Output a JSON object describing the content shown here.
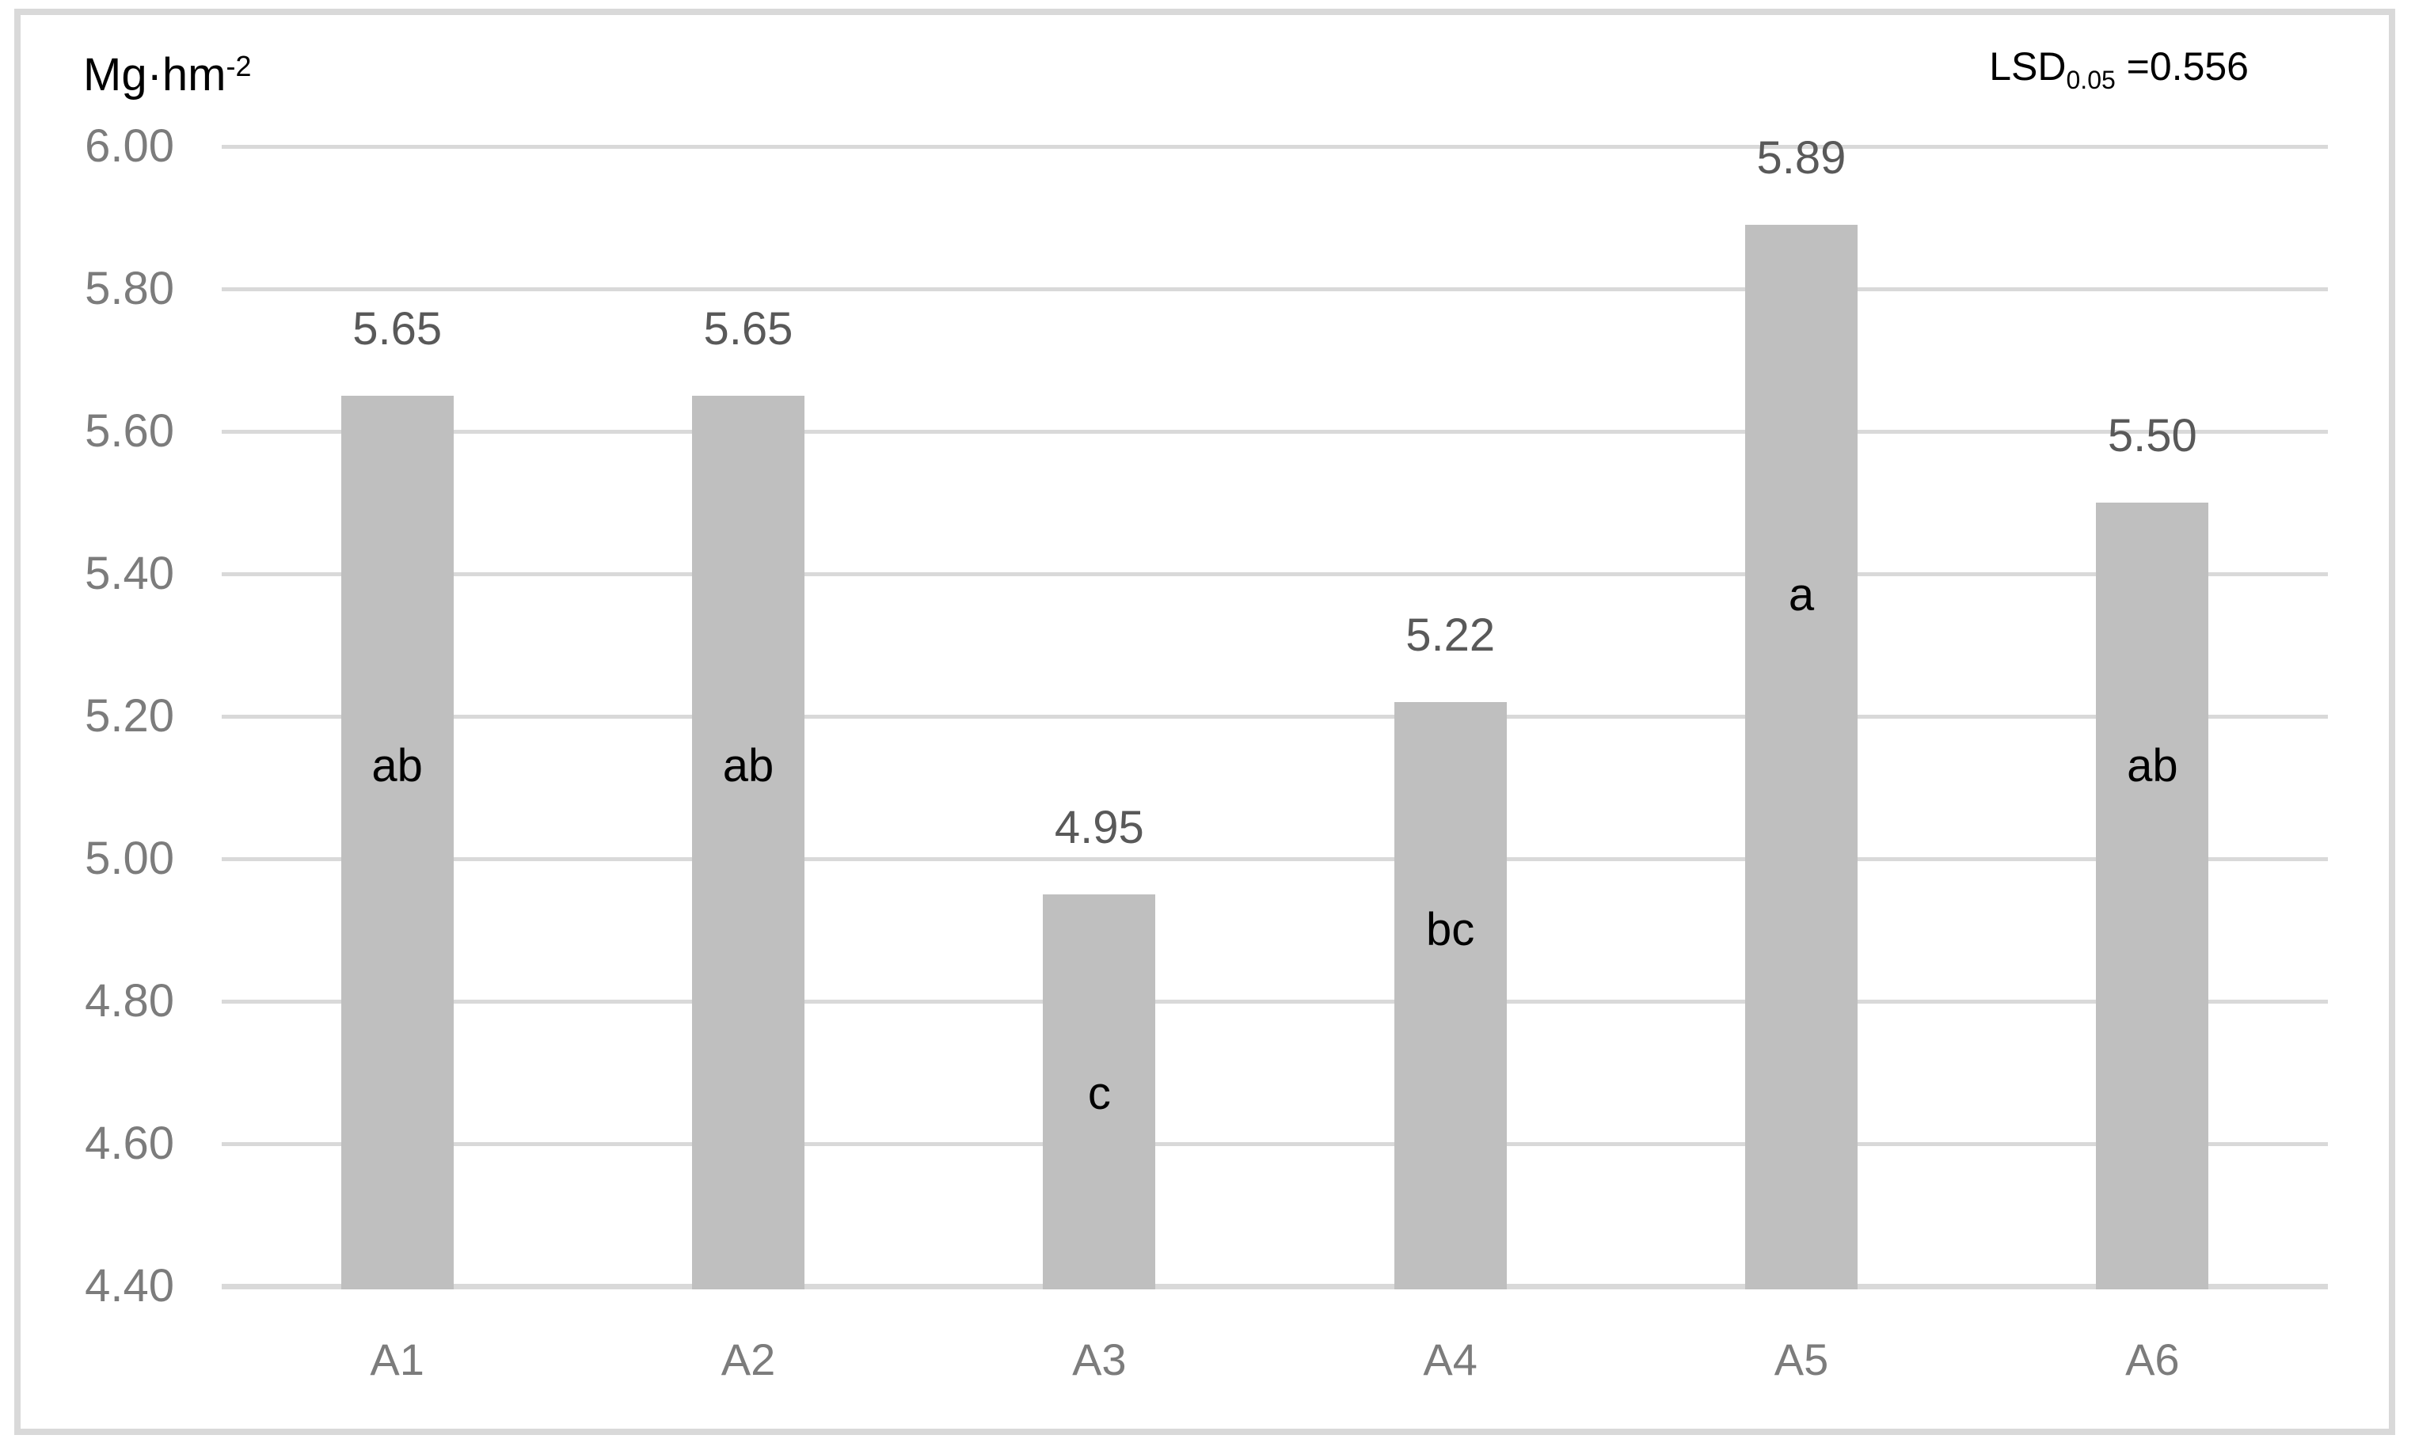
{
  "chart_data": {
    "type": "bar",
    "title": "",
    "unit_label": {
      "base": "Mg·hm",
      "superscript": "-2"
    },
    "annotation": {
      "base": "LSD",
      "subscript": "0.05",
      "rest": " =0.556"
    },
    "categories": [
      "A1",
      "A2",
      "A3",
      "A4",
      "A5",
      "A6"
    ],
    "values": [
      5.65,
      5.65,
      4.95,
      5.22,
      5.89,
      5.5
    ],
    "value_labels": [
      "5.65",
      "5.65",
      "4.95",
      "5.22",
      "5.89",
      "5.50"
    ],
    "significance_letters": [
      "ab",
      "ab",
      "c",
      "bc",
      "a",
      "ab"
    ],
    "letter_y_axis_units": [
      5.13,
      5.13,
      4.67,
      4.9,
      5.37,
      5.13
    ],
    "y_axis": {
      "min": 4.4,
      "max": 6.0,
      "step": 0.2,
      "tick_labels": [
        "6.00",
        "5.80",
        "5.60",
        "5.40",
        "5.20",
        "5.00",
        "4.80",
        "4.60",
        "4.40"
      ]
    },
    "xlabel": "",
    "ylabel": "Mg·hm⁻²",
    "grid": true,
    "legend": "none",
    "colors": {
      "bar": "#bfbfbf",
      "gridline": "#d9d9d9",
      "axis_line": "#d9d9d9",
      "tick_label": "#7c7c7c",
      "category_label": "#7c7c7c",
      "value_label": "#595959",
      "letter": "#000000",
      "frame": "#d9d9d9"
    }
  }
}
